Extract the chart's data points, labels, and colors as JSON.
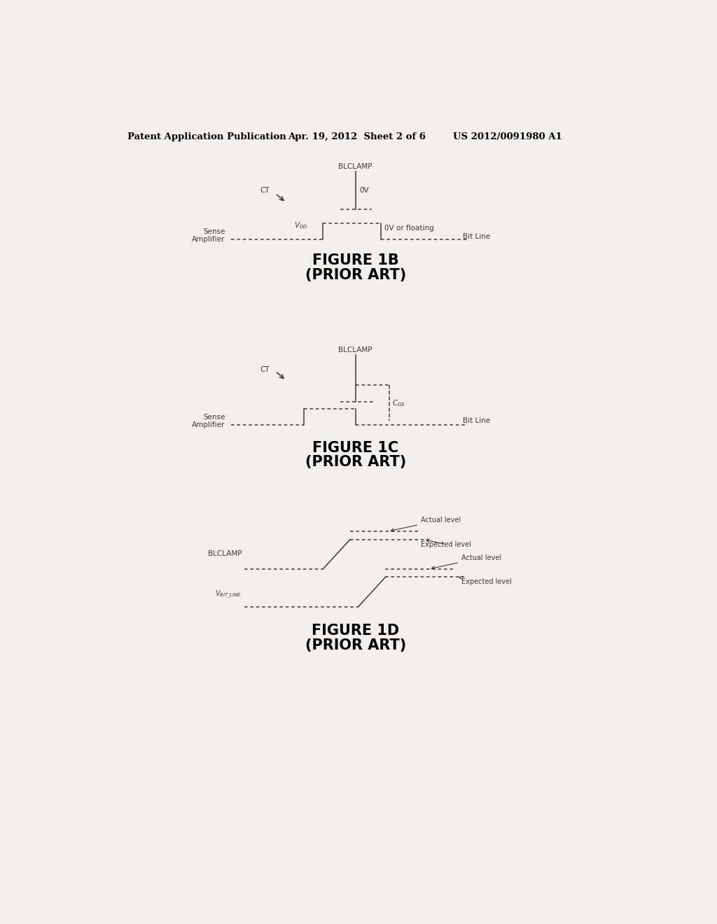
{
  "bg_color": "#f0efed",
  "header_text": "Patent Application Publication",
  "header_date": "Apr. 19, 2012  Sheet 2 of 6",
  "header_patent": "US 2012/0091980 A1",
  "fig1b_title": "FIGURE 1B",
  "fig1b_subtitle": "(PRIOR ART)",
  "fig1c_title": "FIGURE 1C",
  "fig1c_subtitle": "(PRIOR ART)",
  "fig1d_title": "FIGURE 1D",
  "fig1d_subtitle": "(PRIOR ART)",
  "line_color": "#3a3a3a",
  "text_color": "#3a3a3a"
}
